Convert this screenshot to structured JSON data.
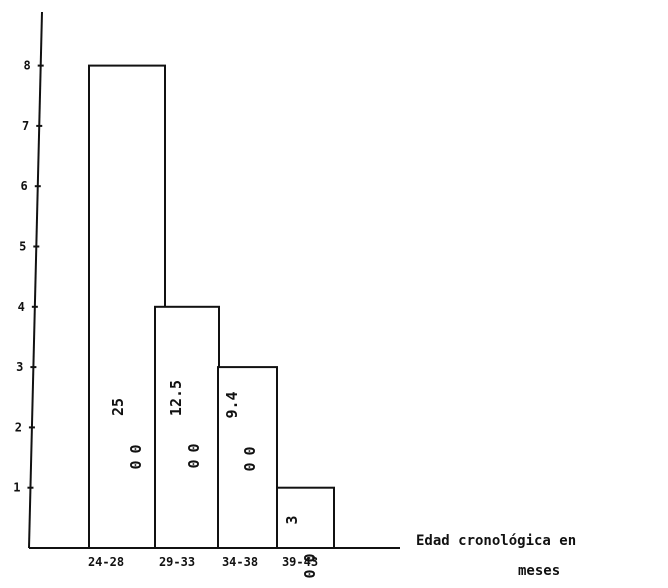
{
  "chart_data": {
    "type": "bar",
    "categories": [
      "24-28",
      "29-33",
      "34-38",
      "39-43"
    ],
    "values": [
      8,
      4,
      3,
      1
    ],
    "bar_labels": [
      "25",
      "12.5",
      "9.4",
      "3"
    ],
    "bar_label_suffix": "0",
    "bar_label_denominator": "0",
    "yticks": [
      "1",
      "2",
      "3",
      "4",
      "5",
      "6",
      "7",
      "8"
    ],
    "ylim": [
      0,
      9
    ],
    "xlabel_line1": "Edad cronológica en",
    "xlabel_line2": "meses",
    "title": "",
    "ylabel": "",
    "grid": false,
    "bar_fill": "#ffffff",
    "bar_stroke": "#111111"
  }
}
